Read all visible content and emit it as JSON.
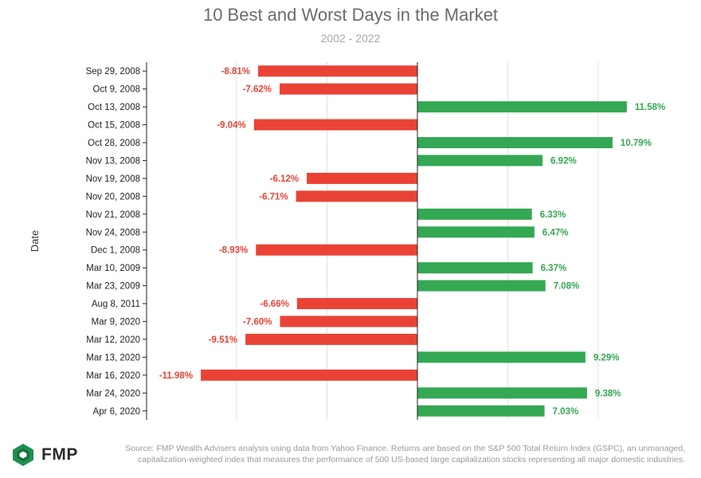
{
  "chart_data": {
    "type": "bar",
    "orientation": "horizontal",
    "title": "10 Best and Worst Days in the Market",
    "subtitle": "2002 - 2022",
    "ylabel": "Date",
    "xlabel": "",
    "xlim": [
      -12,
      12
    ],
    "grid": true,
    "categories": [
      "Sep 29, 2008",
      "Oct 9, 2008",
      "Oct 13, 2008",
      "Oct 15, 2008",
      "Oct 28, 2008",
      "Nov 13, 2008",
      "Nov 19, 2008",
      "Nov 20, 2008",
      "Nov 21, 2008",
      "Nov 24, 2008",
      "Dec 1, 2008",
      "Mar 10, 2009",
      "Mar 23, 2009",
      "Aug 8, 2011",
      "Mar 9, 2020",
      "Mar 12, 2020",
      "Mar 13, 2020",
      "Mar 16, 2020",
      "Mar 24, 2020",
      "Apr 6, 2020"
    ],
    "values": [
      -8.81,
      -7.62,
      11.58,
      -9.04,
      10.79,
      6.92,
      -6.12,
      -6.71,
      6.33,
      6.47,
      -8.93,
      6.37,
      7.08,
      -6.66,
      -7.6,
      -9.51,
      9.29,
      -11.98,
      9.38,
      7.03
    ],
    "labels": [
      "-8.81%",
      "-7.62%",
      "11.58%",
      "-9.04%",
      "10.79%",
      "6.92%",
      "-6.12%",
      "-6.71%",
      "6.33%",
      "6.47%",
      "-8.93%",
      "6.37%",
      "7.08%",
      "-6.66%",
      "-7.60%",
      "-9.51%",
      "9.29%",
      "-11.98%",
      "9.38%",
      "7.03%"
    ],
    "colors": {
      "positive": "#34a853",
      "negative": "#ea4335",
      "grid": "#e0e0e0",
      "axis": "#222222"
    }
  },
  "footer": {
    "logo_text": "FMP",
    "source_line1": "Source: FMP Wealth Advisers analysis using data from Yahoo Finance. Returns are based on the S&P 500 Total Return Index (GSPC), an unmanaged,",
    "source_line2": "capitalization-weighted index that measures the performance of 500 US-based large capitalization stocks representing all major domestic industries.",
    "logo_colors": {
      "outer": "#1f8f4e",
      "inner": "#ffffff",
      "dark": "#146b39"
    }
  }
}
